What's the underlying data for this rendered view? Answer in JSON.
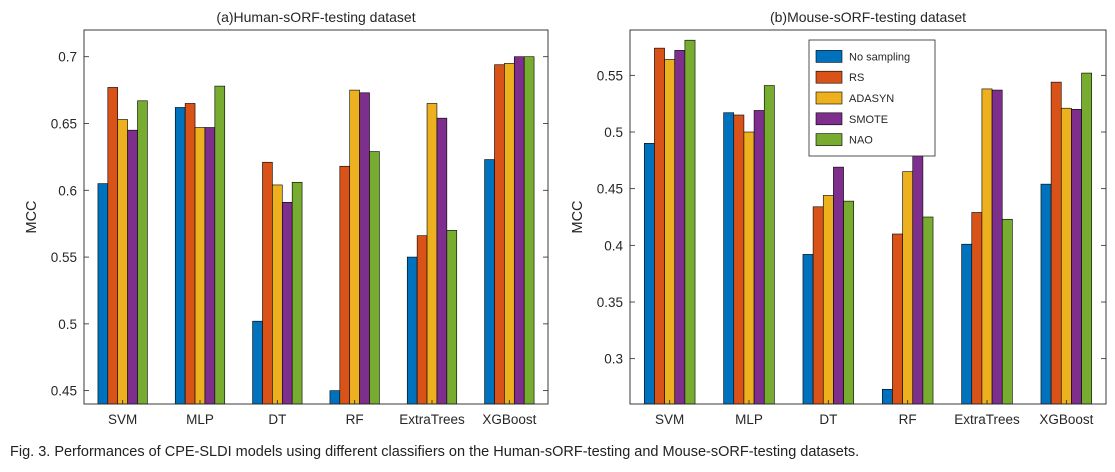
{
  "figure": {
    "caption": "Fig. 3. Performances of CPE-SLDI models using different classifiers on the Human-sORF-testing and Mouse-sORF-testing datasets."
  },
  "series_names": [
    "No sampling",
    "RS",
    "ADASYN",
    "SMOTE",
    "NAO"
  ],
  "colors": [
    "#0072BD",
    "#D95319",
    "#EDB120",
    "#7E2F8E",
    "#77AC30"
  ],
  "chart_data": [
    {
      "type": "bar",
      "title": "(a)Human-sORF-testing dataset",
      "xlabel": "",
      "ylabel": "MCC",
      "ylim": [
        0.44,
        0.72
      ],
      "yticks": [
        0.45,
        0.5,
        0.55,
        0.6,
        0.65,
        0.7
      ],
      "ytick_labels": [
        "0.45",
        "0.5",
        "0.55",
        "0.6",
        "0.65",
        "0.7"
      ],
      "grid": false,
      "legend": "none",
      "categories": [
        "SVM",
        "MLP",
        "DT",
        "RF",
        "ExtraTrees",
        "XGBoost"
      ],
      "series": [
        {
          "name": "No sampling",
          "values": [
            0.605,
            0.662,
            0.502,
            0.45,
            0.55,
            0.623
          ]
        },
        {
          "name": "RS",
          "values": [
            0.677,
            0.665,
            0.621,
            0.618,
            0.566,
            0.694
          ]
        },
        {
          "name": "ADASYN",
          "values": [
            0.653,
            0.647,
            0.604,
            0.675,
            0.665,
            0.695
          ]
        },
        {
          "name": "SMOTE",
          "values": [
            0.645,
            0.647,
            0.591,
            0.673,
            0.654,
            0.7
          ]
        },
        {
          "name": "NAO",
          "values": [
            0.667,
            0.678,
            0.606,
            0.629,
            0.57,
            0.7
          ]
        }
      ]
    },
    {
      "type": "bar",
      "title": "(b)Mouse-sORF-testing dataset",
      "xlabel": "",
      "ylabel": "MCC",
      "ylim": [
        0.26,
        0.59
      ],
      "yticks": [
        0.3,
        0.35,
        0.4,
        0.45,
        0.5,
        0.55
      ],
      "ytick_labels": [
        "0.3",
        "0.35",
        "0.4",
        "0.45",
        "0.5",
        "0.55"
      ],
      "grid": false,
      "legend": "top-center",
      "categories": [
        "SVM",
        "MLP",
        "DT",
        "RF",
        "ExtraTrees",
        "XGBoost"
      ],
      "series": [
        {
          "name": "No sampling",
          "values": [
            0.49,
            0.517,
            0.392,
            0.273,
            0.401,
            0.454
          ]
        },
        {
          "name": "RS",
          "values": [
            0.574,
            0.515,
            0.434,
            0.41,
            0.429,
            0.544
          ]
        },
        {
          "name": "ADASYN",
          "values": [
            0.564,
            0.5,
            0.444,
            0.465,
            0.538,
            0.521
          ]
        },
        {
          "name": "SMOTE",
          "values": [
            0.572,
            0.519,
            0.469,
            0.481,
            0.537,
            0.52
          ]
        },
        {
          "name": "NAO",
          "values": [
            0.581,
            0.541,
            0.439,
            0.425,
            0.423,
            0.552
          ]
        }
      ]
    }
  ]
}
